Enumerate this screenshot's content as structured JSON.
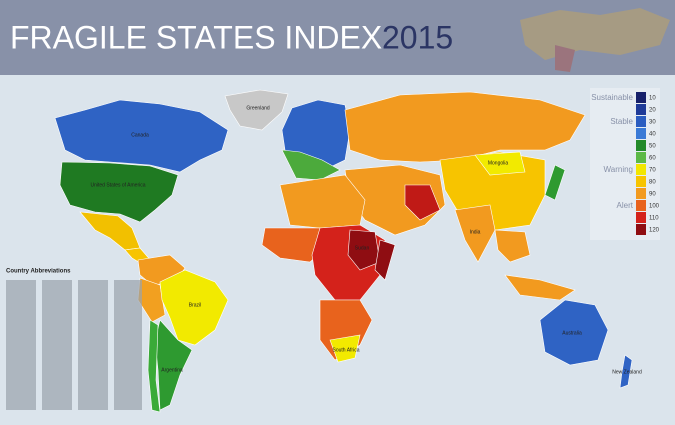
{
  "header": {
    "title": "FRAGILE STATES INDEX",
    "year": "2015"
  },
  "legend": {
    "groups": [
      {
        "label": "Sustainable",
        "at": 10
      },
      {
        "label": "Stable",
        "at": 30
      },
      {
        "label": "Warning",
        "at": 70
      },
      {
        "label": "Alert",
        "at": 100
      }
    ],
    "items": [
      {
        "value": 10,
        "color": "#16206a"
      },
      {
        "value": 20,
        "color": "#1e3a98"
      },
      {
        "value": 30,
        "color": "#2b5dc0"
      },
      {
        "value": 40,
        "color": "#3a7ad6"
      },
      {
        "value": 50,
        "color": "#238a2a"
      },
      {
        "value": 60,
        "color": "#5cb946"
      },
      {
        "value": 70,
        "color": "#f2e600"
      },
      {
        "value": 80,
        "color": "#f7c400"
      },
      {
        "value": 90,
        "color": "#f29a1f"
      },
      {
        "value": 100,
        "color": "#e8631d"
      },
      {
        "value": 110,
        "color": "#d4221b"
      },
      {
        "value": 120,
        "color": "#8f0d12"
      }
    ]
  },
  "map": {
    "labels": [
      "Greenland",
      "Canada",
      "United States of America",
      "Brazil",
      "Argentina",
      "Mongolia",
      "India",
      "Sudan",
      "South Africa",
      "Australia",
      "New Zealand"
    ]
  },
  "abbreviations": {
    "heading": "Country Abbreviations"
  }
}
